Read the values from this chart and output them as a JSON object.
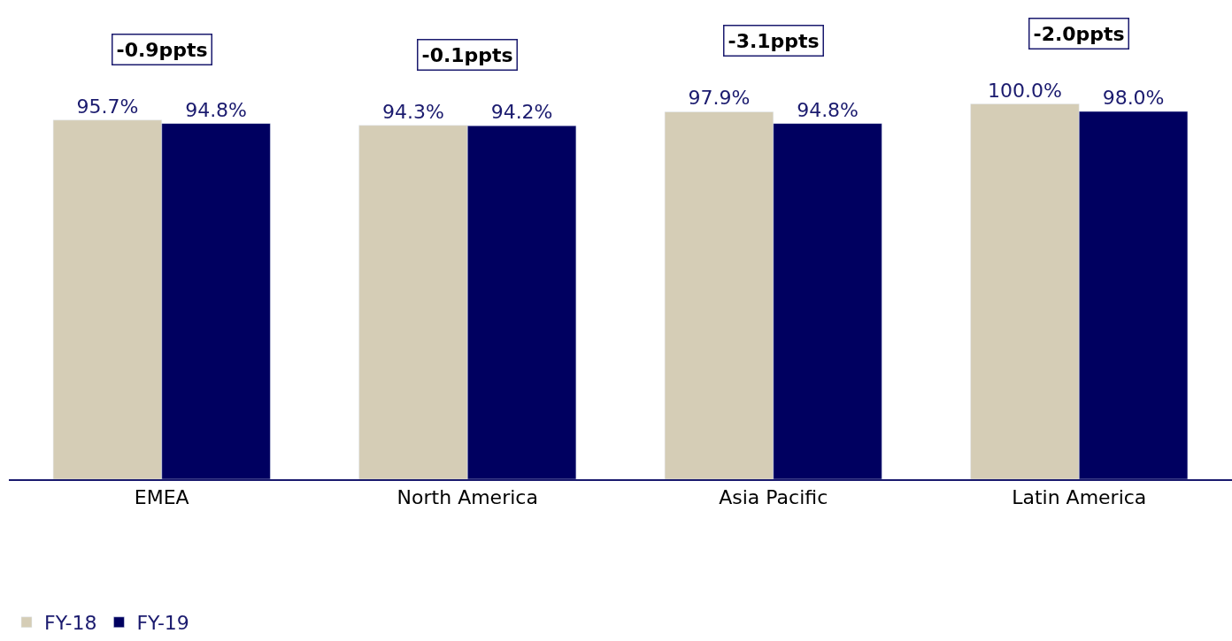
{
  "chart_data": {
    "type": "bar",
    "categories": [
      "EMEA",
      "North America",
      "Asia Pacific",
      "Latin America"
    ],
    "series": [
      {
        "name": "FY-18",
        "color": "#d5cdb6",
        "values": [
          95.7,
          94.3,
          97.9,
          100.0
        ],
        "value_labels": [
          "95.7%",
          "94.3%",
          "97.9%",
          "100.0%"
        ]
      },
      {
        "name": "FY-19",
        "color": "#000060",
        "values": [
          94.8,
          94.2,
          94.8,
          98.0
        ],
        "value_labels": [
          "94.8%",
          "94.2%",
          "94.8%",
          "98.0%"
        ]
      }
    ],
    "annotations": [
      "-0.9ppts",
      "-0.1ppts",
      "-3.1ppts",
      "-2.0ppts"
    ],
    "legend": "bottom left"
  }
}
